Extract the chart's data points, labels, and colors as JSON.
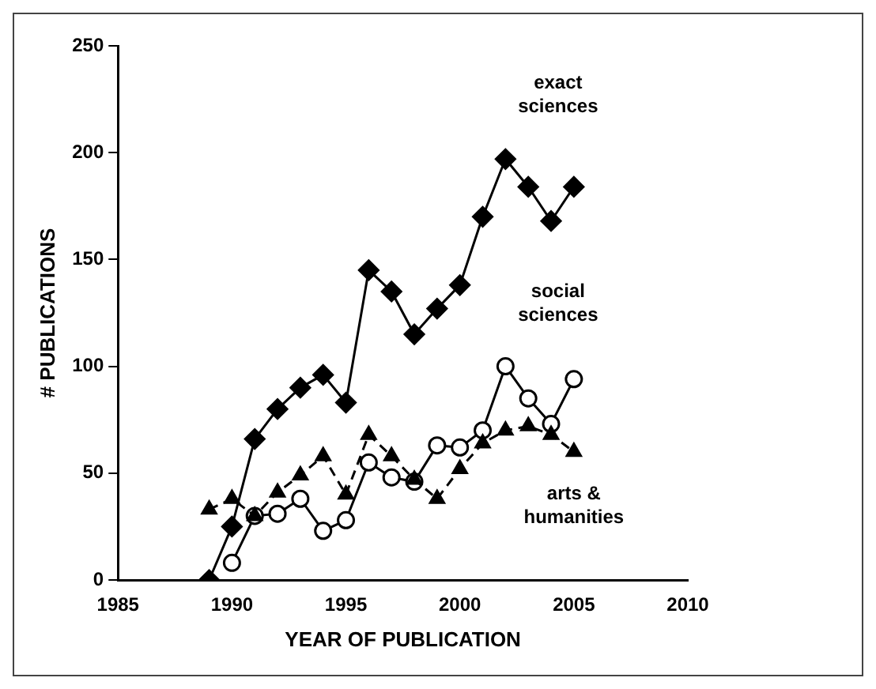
{
  "chart_data": {
    "type": "line",
    "xlabel": "YEAR OF PUBLICATION",
    "ylabel": "# PUBLICATIONS",
    "xlim": [
      1985,
      2010
    ],
    "xticks": [
      1985,
      1990,
      1995,
      2000,
      2005,
      2010
    ],
    "ylim": [
      0,
      250
    ],
    "yticks": [
      0,
      50,
      100,
      150,
      200,
      250
    ],
    "grid": false,
    "legend": false,
    "series": [
      {
        "name": "exact sciences",
        "color": "#000000",
        "marker": "diamond",
        "line_style": "solid",
        "x": [
          1989,
          1990,
          1991,
          1992,
          1993,
          1994,
          1995,
          1996,
          1997,
          1998,
          1999,
          2000,
          2001,
          2002,
          2003,
          2004,
          2005
        ],
        "values": [
          0,
          25,
          66,
          80,
          90,
          96,
          83,
          145,
          135,
          115,
          127,
          138,
          170,
          197,
          184,
          168,
          184
        ]
      },
      {
        "name": "social sciences",
        "color": "#000000",
        "marker": "circle",
        "line_style": "solid",
        "x": [
          1990,
          1991,
          1992,
          1993,
          1994,
          1995,
          1996,
          1997,
          1998,
          1999,
          2000,
          2001,
          2002,
          2003,
          2004,
          2005
        ],
        "values": [
          8,
          30,
          31,
          38,
          23,
          28,
          55,
          48,
          46,
          63,
          62,
          70,
          100,
          85,
          73,
          94
        ]
      },
      {
        "name": "arts & humanities",
        "color": "#000000",
        "marker": "triangle",
        "line_style": "dashed",
        "x": [
          1989,
          1990,
          1991,
          1992,
          1993,
          1994,
          1995,
          1996,
          1997,
          1998,
          1999,
          2000,
          2001,
          2002,
          2003,
          2004,
          2005
        ],
        "values": [
          33,
          38,
          30,
          41,
          49,
          58,
          40,
          68,
          58,
          47,
          38,
          52,
          64,
          70,
          72,
          68,
          60
        ]
      }
    ]
  }
}
